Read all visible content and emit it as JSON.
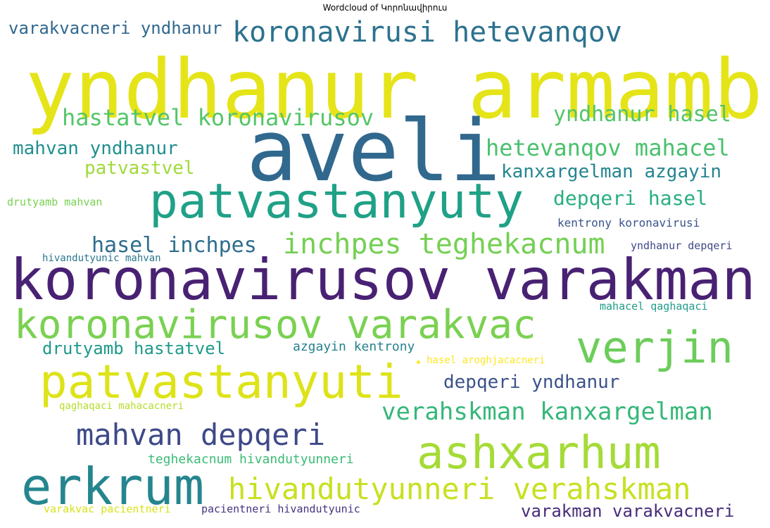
{
  "title": "Wordcloud of Կորոնավիրուս",
  "words": [
    {
      "text": "yndhanur armamb",
      "color": "#e5e419"
    },
    {
      "text": "aveli",
      "color": "#31688e"
    },
    {
      "text": "koronavirusov varakman",
      "color": "#482173"
    },
    {
      "text": "patvastanyuty",
      "color": "#1fa187"
    },
    {
      "text": "koronavirusi hetevanqov",
      "color": "#2c728e"
    },
    {
      "text": "koronavirusov varakvac",
      "color": "#7ad151"
    },
    {
      "text": "patvastanyuti",
      "color": "#dde318"
    },
    {
      "text": "erkrum",
      "color": "#25858e"
    },
    {
      "text": "ashxarhum",
      "color": "#a5db36"
    },
    {
      "text": "verjin",
      "color": "#6ccd5a"
    },
    {
      "text": "hivandutyunneri verahskman",
      "color": "#c8e020"
    },
    {
      "text": "mahvan depqeri",
      "color": "#3e4989"
    },
    {
      "text": "inchpes teghekacnum",
      "color": "#75d054"
    },
    {
      "text": "verahskman kanxargelman",
      "color": "#35b779"
    },
    {
      "text": "hetevanqov mahacel",
      "color": "#4ac16d"
    },
    {
      "text": "hastatvel koronavirusov",
      "color": "#54c568"
    },
    {
      "text": "yndhanur hasel",
      "color": "#52c569"
    },
    {
      "text": "hasel inchpes",
      "color": "#2e6e8e"
    },
    {
      "text": "depqeri hasel",
      "color": "#29af7f"
    },
    {
      "text": "kanxargelman azgayin",
      "color": "#24868e"
    },
    {
      "text": "mahvan yndhanur",
      "color": "#21908d"
    },
    {
      "text": "depqeri yndhanur",
      "color": "#3b528b"
    },
    {
      "text": "varakvacneri yndhanur",
      "color": "#31688e"
    },
    {
      "text": "patvastvel",
      "color": "#a0da39"
    },
    {
      "text": "drutyamb hastatvel",
      "color": "#1f9a8a"
    },
    {
      "text": "varakman varakvacneri",
      "color": "#472c7a"
    },
    {
      "text": "azgayin kentrony",
      "color": "#26828e"
    },
    {
      "text": "teghekacnum hivandutyunneri",
      "color": "#3bbb75"
    },
    {
      "text": "kentrony koronavirusi",
      "color": "#3a548c"
    },
    {
      "text": "drutyamb mahvan",
      "color": "#7ad151"
    },
    {
      "text": "yndhanur depqeri",
      "color": "#3f4889"
    },
    {
      "text": "hivandutyunic mahvan",
      "color": "#2a768e"
    },
    {
      "text": "mahacel qaghaqaci",
      "color": "#1e9c89"
    },
    {
      "text": "hasel aroghjacacneri",
      "color": "#fde725"
    },
    {
      "text": "qaghaqaci mahacacneri",
      "color": "#b5de2b"
    },
    {
      "text": "varakvac pacientneri",
      "color": "#d8e219"
    },
    {
      "text": "pacientneri hivandutyunic",
      "color": "#46337f"
    }
  ]
}
